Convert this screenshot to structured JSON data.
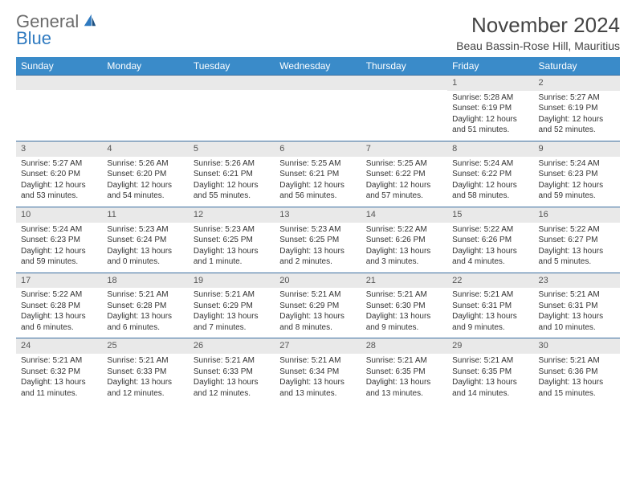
{
  "brand": {
    "word1": "General",
    "word2": "Blue",
    "accent": "#2f7ac0",
    "muted": "#6b6b6b"
  },
  "title": "November 2024",
  "location": "Beau Bassin-Rose Hill, Mauritius",
  "colors": {
    "header_bg": "#3a8bc9",
    "header_text": "#ffffff",
    "row_border": "#3a6fa0",
    "daynum_bg": "#e9e9e9",
    "text": "#333333"
  },
  "font": {
    "family": "Arial",
    "title_size": 26,
    "location_size": 14,
    "th_size": 12,
    "cell_size": 10
  },
  "day_headers": [
    "Sunday",
    "Monday",
    "Tuesday",
    "Wednesday",
    "Thursday",
    "Friday",
    "Saturday"
  ],
  "weeks": [
    [
      {
        "blank": true
      },
      {
        "blank": true
      },
      {
        "blank": true
      },
      {
        "blank": true
      },
      {
        "blank": true
      },
      {
        "n": "1",
        "sunrise": "Sunrise: 5:28 AM",
        "sunset": "Sunset: 6:19 PM",
        "daylight": "Daylight: 12 hours and 51 minutes."
      },
      {
        "n": "2",
        "sunrise": "Sunrise: 5:27 AM",
        "sunset": "Sunset: 6:19 PM",
        "daylight": "Daylight: 12 hours and 52 minutes."
      }
    ],
    [
      {
        "n": "3",
        "sunrise": "Sunrise: 5:27 AM",
        "sunset": "Sunset: 6:20 PM",
        "daylight": "Daylight: 12 hours and 53 minutes."
      },
      {
        "n": "4",
        "sunrise": "Sunrise: 5:26 AM",
        "sunset": "Sunset: 6:20 PM",
        "daylight": "Daylight: 12 hours and 54 minutes."
      },
      {
        "n": "5",
        "sunrise": "Sunrise: 5:26 AM",
        "sunset": "Sunset: 6:21 PM",
        "daylight": "Daylight: 12 hours and 55 minutes."
      },
      {
        "n": "6",
        "sunrise": "Sunrise: 5:25 AM",
        "sunset": "Sunset: 6:21 PM",
        "daylight": "Daylight: 12 hours and 56 minutes."
      },
      {
        "n": "7",
        "sunrise": "Sunrise: 5:25 AM",
        "sunset": "Sunset: 6:22 PM",
        "daylight": "Daylight: 12 hours and 57 minutes."
      },
      {
        "n": "8",
        "sunrise": "Sunrise: 5:24 AM",
        "sunset": "Sunset: 6:22 PM",
        "daylight": "Daylight: 12 hours and 58 minutes."
      },
      {
        "n": "9",
        "sunrise": "Sunrise: 5:24 AM",
        "sunset": "Sunset: 6:23 PM",
        "daylight": "Daylight: 12 hours and 59 minutes."
      }
    ],
    [
      {
        "n": "10",
        "sunrise": "Sunrise: 5:24 AM",
        "sunset": "Sunset: 6:23 PM",
        "daylight": "Daylight: 12 hours and 59 minutes."
      },
      {
        "n": "11",
        "sunrise": "Sunrise: 5:23 AM",
        "sunset": "Sunset: 6:24 PM",
        "daylight": "Daylight: 13 hours and 0 minutes."
      },
      {
        "n": "12",
        "sunrise": "Sunrise: 5:23 AM",
        "sunset": "Sunset: 6:25 PM",
        "daylight": "Daylight: 13 hours and 1 minute."
      },
      {
        "n": "13",
        "sunrise": "Sunrise: 5:23 AM",
        "sunset": "Sunset: 6:25 PM",
        "daylight": "Daylight: 13 hours and 2 minutes."
      },
      {
        "n": "14",
        "sunrise": "Sunrise: 5:22 AM",
        "sunset": "Sunset: 6:26 PM",
        "daylight": "Daylight: 13 hours and 3 minutes."
      },
      {
        "n": "15",
        "sunrise": "Sunrise: 5:22 AM",
        "sunset": "Sunset: 6:26 PM",
        "daylight": "Daylight: 13 hours and 4 minutes."
      },
      {
        "n": "16",
        "sunrise": "Sunrise: 5:22 AM",
        "sunset": "Sunset: 6:27 PM",
        "daylight": "Daylight: 13 hours and 5 minutes."
      }
    ],
    [
      {
        "n": "17",
        "sunrise": "Sunrise: 5:22 AM",
        "sunset": "Sunset: 6:28 PM",
        "daylight": "Daylight: 13 hours and 6 minutes."
      },
      {
        "n": "18",
        "sunrise": "Sunrise: 5:21 AM",
        "sunset": "Sunset: 6:28 PM",
        "daylight": "Daylight: 13 hours and 6 minutes."
      },
      {
        "n": "19",
        "sunrise": "Sunrise: 5:21 AM",
        "sunset": "Sunset: 6:29 PM",
        "daylight": "Daylight: 13 hours and 7 minutes."
      },
      {
        "n": "20",
        "sunrise": "Sunrise: 5:21 AM",
        "sunset": "Sunset: 6:29 PM",
        "daylight": "Daylight: 13 hours and 8 minutes."
      },
      {
        "n": "21",
        "sunrise": "Sunrise: 5:21 AM",
        "sunset": "Sunset: 6:30 PM",
        "daylight": "Daylight: 13 hours and 9 minutes."
      },
      {
        "n": "22",
        "sunrise": "Sunrise: 5:21 AM",
        "sunset": "Sunset: 6:31 PM",
        "daylight": "Daylight: 13 hours and 9 minutes."
      },
      {
        "n": "23",
        "sunrise": "Sunrise: 5:21 AM",
        "sunset": "Sunset: 6:31 PM",
        "daylight": "Daylight: 13 hours and 10 minutes."
      }
    ],
    [
      {
        "n": "24",
        "sunrise": "Sunrise: 5:21 AM",
        "sunset": "Sunset: 6:32 PM",
        "daylight": "Daylight: 13 hours and 11 minutes."
      },
      {
        "n": "25",
        "sunrise": "Sunrise: 5:21 AM",
        "sunset": "Sunset: 6:33 PM",
        "daylight": "Daylight: 13 hours and 12 minutes."
      },
      {
        "n": "26",
        "sunrise": "Sunrise: 5:21 AM",
        "sunset": "Sunset: 6:33 PM",
        "daylight": "Daylight: 13 hours and 12 minutes."
      },
      {
        "n": "27",
        "sunrise": "Sunrise: 5:21 AM",
        "sunset": "Sunset: 6:34 PM",
        "daylight": "Daylight: 13 hours and 13 minutes."
      },
      {
        "n": "28",
        "sunrise": "Sunrise: 5:21 AM",
        "sunset": "Sunset: 6:35 PM",
        "daylight": "Daylight: 13 hours and 13 minutes."
      },
      {
        "n": "29",
        "sunrise": "Sunrise: 5:21 AM",
        "sunset": "Sunset: 6:35 PM",
        "daylight": "Daylight: 13 hours and 14 minutes."
      },
      {
        "n": "30",
        "sunrise": "Sunrise: 5:21 AM",
        "sunset": "Sunset: 6:36 PM",
        "daylight": "Daylight: 13 hours and 15 minutes."
      }
    ]
  ]
}
